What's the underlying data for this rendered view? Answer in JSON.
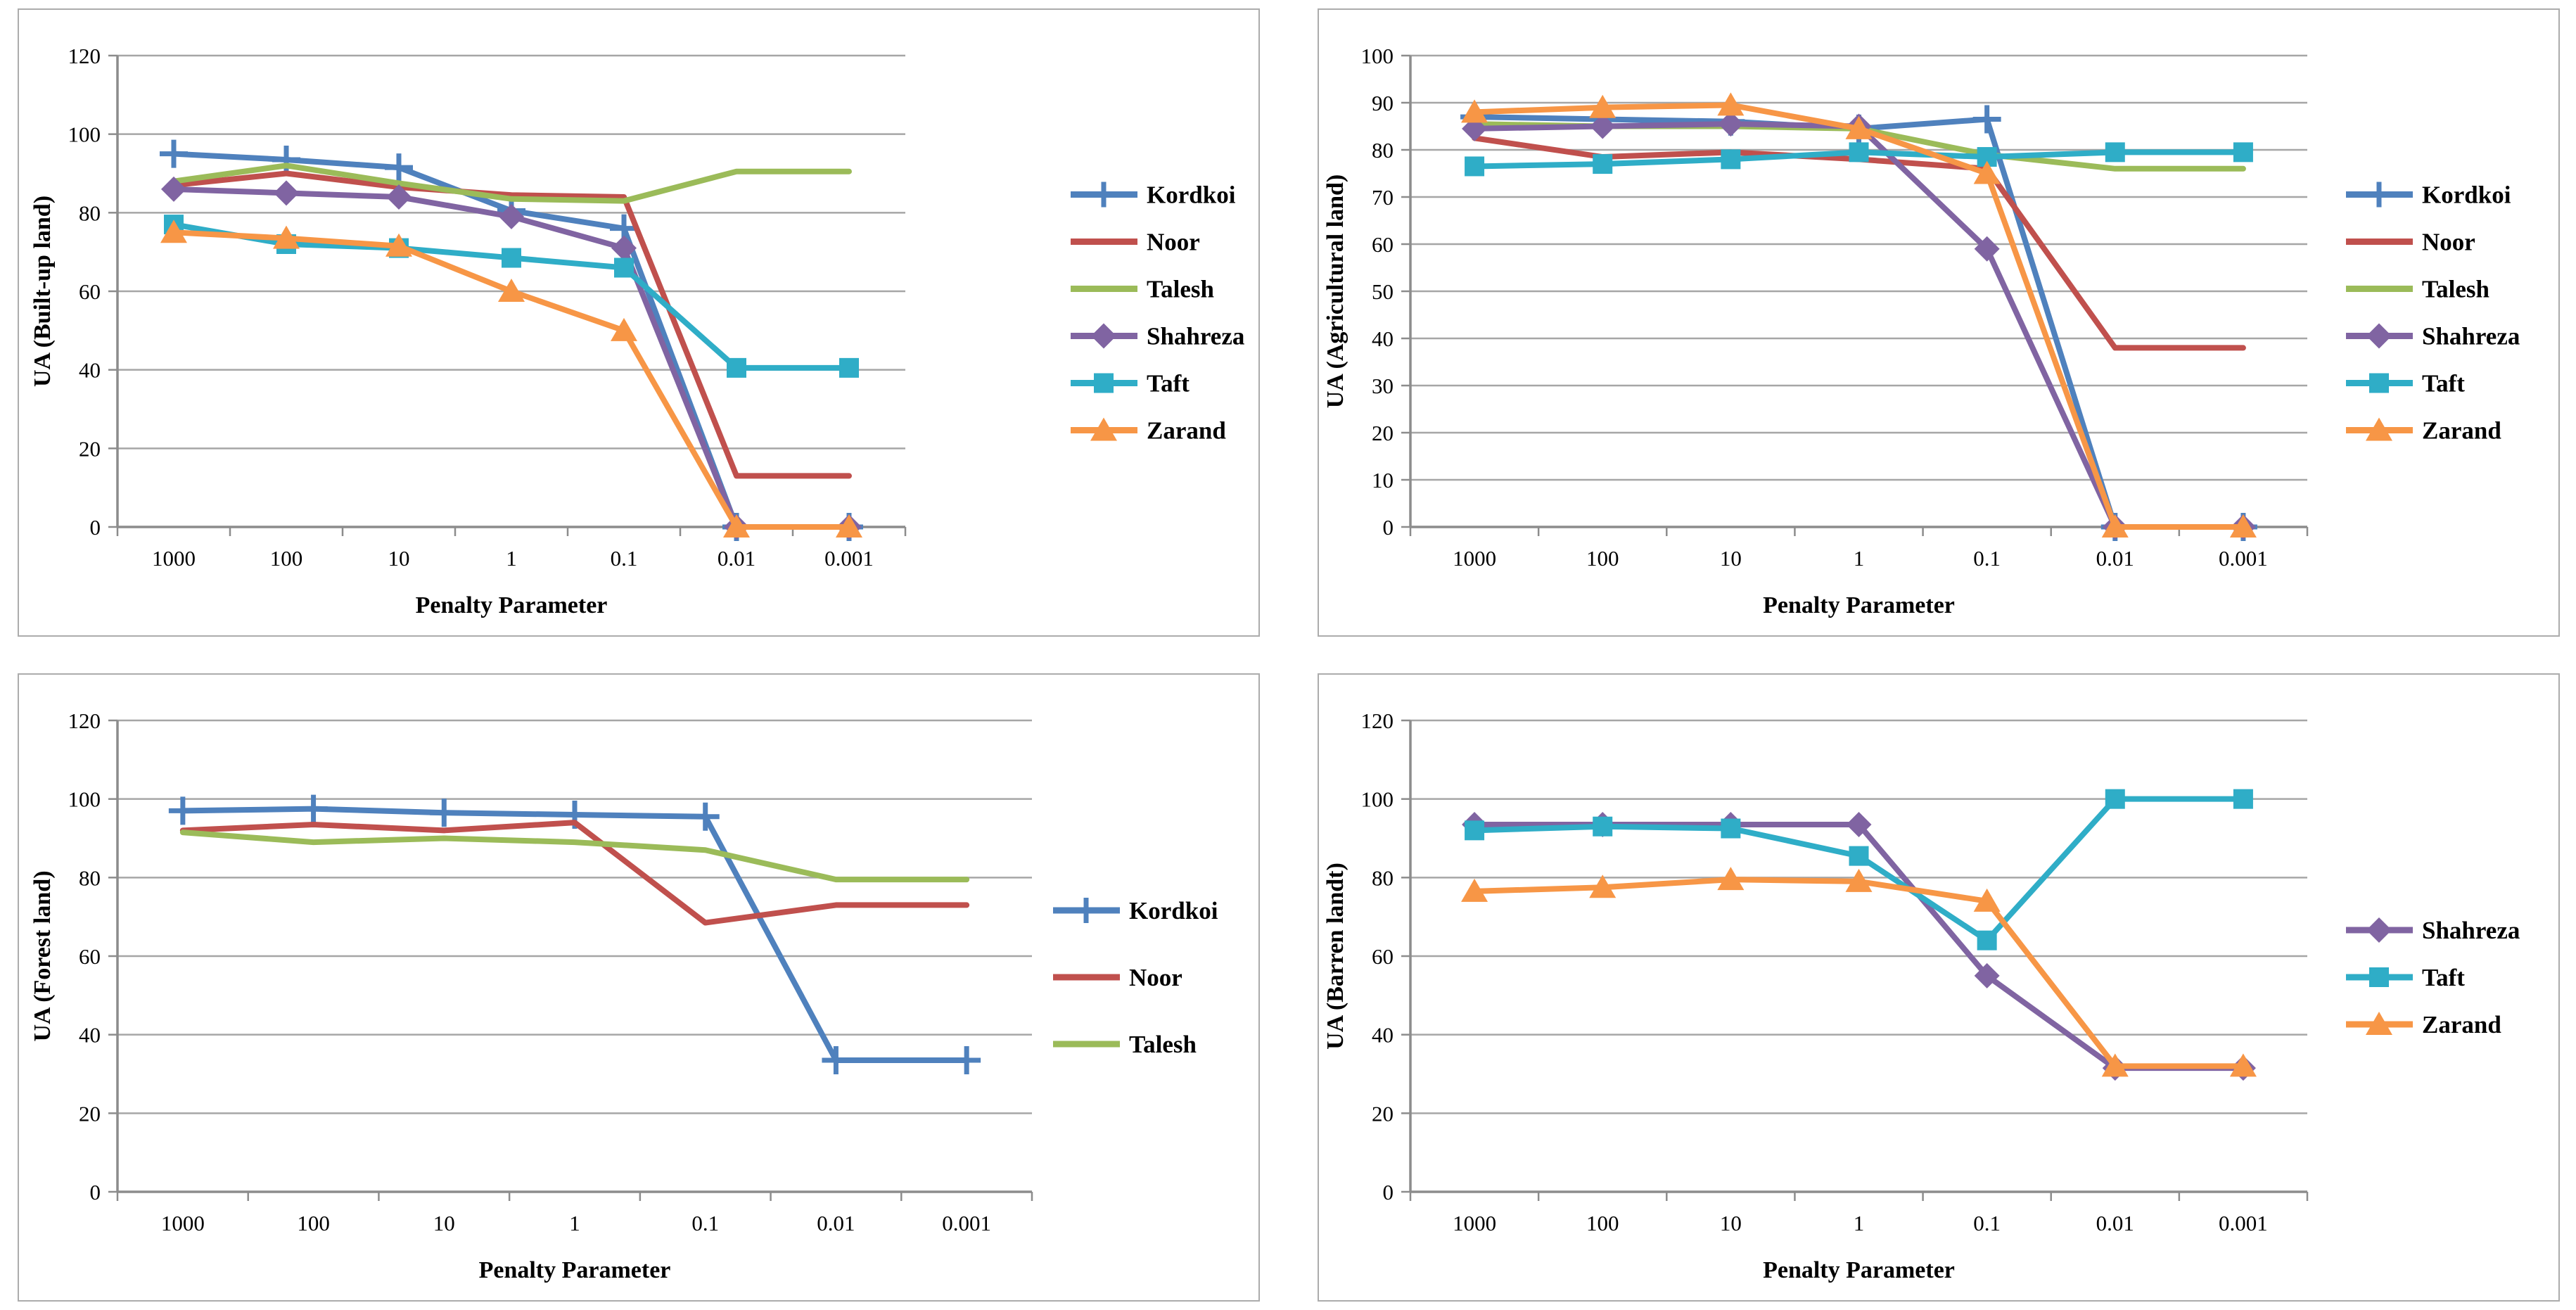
{
  "page": {
    "background": "#ffffff",
    "grid": "2x2 line chart panels"
  },
  "chart_data": [
    {
      "id": "built-up-land",
      "type": "line",
      "title": "",
      "xlabel": "Penalty Parameter",
      "ylabel": "UA (Built-up land)",
      "categories": [
        "1000",
        "100",
        "10",
        "1",
        "0.1",
        "0.01",
        "0.001"
      ],
      "ylim": [
        0,
        120
      ],
      "yticks": [
        0,
        20,
        40,
        60,
        80,
        100,
        120
      ],
      "grid": true,
      "legend_position": "right",
      "series": [
        {
          "name": "Kordkoi",
          "color": "#4F81BD",
          "marker": "plus",
          "values": [
            95,
            93.5,
            91.5,
            80.5,
            76,
            0,
            0
          ]
        },
        {
          "name": "Noor",
          "color": "#C0504D",
          "marker": "none",
          "values": [
            87,
            90,
            86.5,
            84.5,
            84,
            13,
            13
          ]
        },
        {
          "name": "Talesh",
          "color": "#9BBB59",
          "marker": "none",
          "values": [
            88,
            92,
            87.5,
            83.5,
            83,
            90.5,
            90.5
          ]
        },
        {
          "name": "Shahreza",
          "color": "#8064A2",
          "marker": "diamond",
          "values": [
            86,
            85,
            84,
            79,
            71,
            0,
            0
          ]
        },
        {
          "name": "Taft",
          "color": "#2FADC7",
          "marker": "square",
          "values": [
            77,
            72,
            71,
            68.5,
            66,
            40.5,
            40.5
          ]
        },
        {
          "name": "Zarand",
          "color": "#F79646",
          "marker": "triangle",
          "values": [
            75,
            73.5,
            71.5,
            60,
            50,
            0,
            0
          ]
        }
      ]
    },
    {
      "id": "agricultural-land",
      "type": "line",
      "title": "",
      "xlabel": "Penalty Parameter",
      "ylabel": "UA (Agricultural land)",
      "categories": [
        "1000",
        "100",
        "10",
        "1",
        "0.1",
        "0.01",
        "0.001"
      ],
      "ylim": [
        0,
        100
      ],
      "yticks": [
        0,
        10,
        20,
        30,
        40,
        50,
        60,
        70,
        80,
        90,
        100
      ],
      "grid": true,
      "legend_position": "right",
      "series": [
        {
          "name": "Kordkoi",
          "color": "#4F81BD",
          "marker": "plus",
          "values": [
            87,
            86.5,
            86,
            84.5,
            86.5,
            0,
            0
          ]
        },
        {
          "name": "Noor",
          "color": "#C0504D",
          "marker": "none",
          "values": [
            82.5,
            78.5,
            79.5,
            78,
            76,
            38,
            38
          ]
        },
        {
          "name": "Talesh",
          "color": "#9BBB59",
          "marker": "none",
          "values": [
            85.5,
            85,
            85,
            84.5,
            79,
            76,
            76
          ]
        },
        {
          "name": "Shahreza",
          "color": "#8064A2",
          "marker": "diamond",
          "values": [
            84.5,
            85,
            85.5,
            85,
            59,
            0,
            0
          ]
        },
        {
          "name": "Taft",
          "color": "#2FADC7",
          "marker": "square",
          "values": [
            76.5,
            77,
            78,
            79.5,
            78.5,
            79.5,
            79.5
          ]
        },
        {
          "name": "Zarand",
          "color": "#F79646",
          "marker": "triangle",
          "values": [
            88,
            89,
            89.5,
            84.5,
            75,
            0,
            0
          ]
        }
      ]
    },
    {
      "id": "forest-land",
      "type": "line",
      "title": "",
      "xlabel": "Penalty Parameter",
      "ylabel": "UA (Forest land)",
      "categories": [
        "1000",
        "100",
        "10",
        "1",
        "0.1",
        "0.01",
        "0.001"
      ],
      "ylim": [
        0,
        120
      ],
      "yticks": [
        0,
        20,
        40,
        60,
        80,
        100,
        120
      ],
      "grid": true,
      "legend_position": "right",
      "series": [
        {
          "name": "Kordkoi",
          "color": "#4F81BD",
          "marker": "plus",
          "values": [
            97,
            97.5,
            96.5,
            96,
            95.5,
            33.5,
            33.5
          ]
        },
        {
          "name": "Noor",
          "color": "#C0504D",
          "marker": "none",
          "values": [
            92,
            93.5,
            92,
            94,
            68.5,
            73,
            73
          ]
        },
        {
          "name": "Talesh",
          "color": "#9BBB59",
          "marker": "none",
          "values": [
            91.5,
            89,
            90,
            89,
            87,
            79.5,
            79.5
          ]
        }
      ]
    },
    {
      "id": "barren-land",
      "type": "line",
      "title": "",
      "xlabel": "Penalty Parameter",
      "ylabel": "UA (Barren landt)",
      "categories": [
        "1000",
        "100",
        "10",
        "1",
        "0.1",
        "0.01",
        "0.001"
      ],
      "ylim": [
        0,
        120
      ],
      "yticks": [
        0,
        20,
        40,
        60,
        80,
        100,
        120
      ],
      "grid": true,
      "legend_position": "right",
      "series": [
        {
          "name": "Shahreza",
          "color": "#8064A2",
          "marker": "diamond",
          "values": [
            93.5,
            93.5,
            93.5,
            93.5,
            55,
            31.5,
            31.5
          ]
        },
        {
          "name": "Taft",
          "color": "#2FADC7",
          "marker": "square",
          "values": [
            92,
            93,
            92.5,
            85.5,
            64,
            100,
            100
          ]
        },
        {
          "name": "Zarand",
          "color": "#F79646",
          "marker": "triangle",
          "values": [
            76.5,
            77.5,
            79.5,
            79,
            74,
            32,
            32
          ]
        }
      ]
    }
  ],
  "style_colors": {
    "gridline": "#A6A6A6",
    "axis_line": "#8C8C8C",
    "panel_border": "#ACACAC",
    "text": "#000000"
  }
}
